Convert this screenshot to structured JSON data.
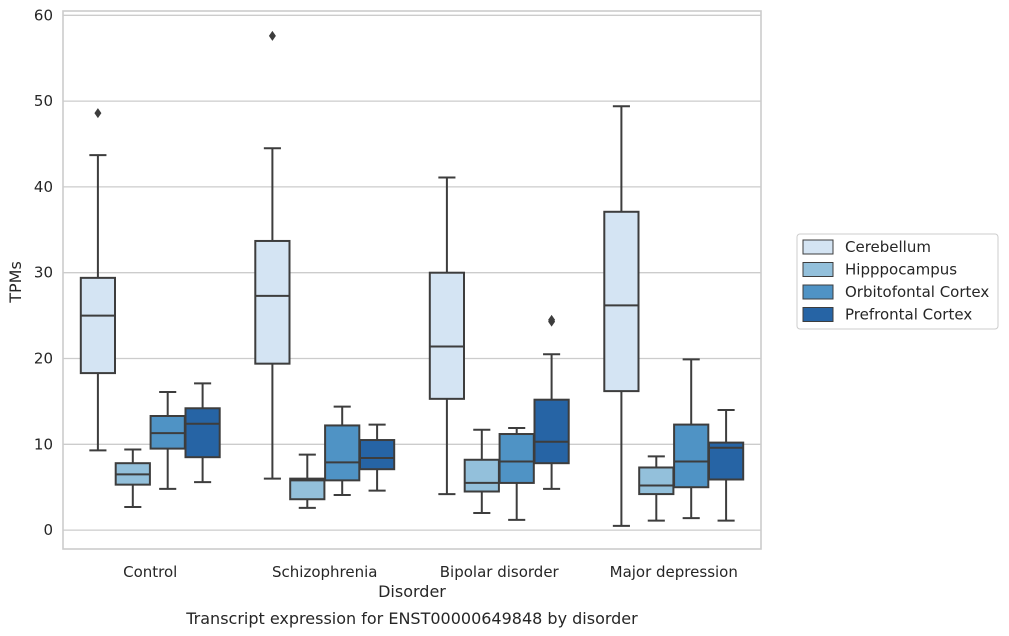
{
  "chart_data": {
    "type": "box",
    "title": "",
    "caption": "Transcript expression for ENST00000649848 by disorder",
    "xlabel": "Disorder",
    "ylabel": "TPMs",
    "ylim": [
      -2.2,
      60.5
    ],
    "yticks": [
      0,
      10,
      20,
      30,
      40,
      50,
      60
    ],
    "grid": true,
    "legend_position": "right",
    "categories": [
      "Control",
      "Schizophrenia",
      "Bipolar disorder",
      "Major depression"
    ],
    "series": [
      {
        "name": "Cerebellum",
        "color": "#d4e4f3",
        "boxes": [
          {
            "whisker_low": 9.3,
            "q1": 18.3,
            "median": 25.0,
            "q3": 29.4,
            "whisker_high": 43.7,
            "outliers": [
              48.6
            ]
          },
          {
            "whisker_low": 6.0,
            "q1": 19.4,
            "median": 27.3,
            "q3": 33.7,
            "whisker_high": 44.5,
            "outliers": [
              57.6
            ]
          },
          {
            "whisker_low": 4.2,
            "q1": 15.3,
            "median": 21.4,
            "q3": 30.0,
            "whisker_high": 41.1,
            "outliers": []
          },
          {
            "whisker_low": 0.5,
            "q1": 16.2,
            "median": 26.2,
            "q3": 37.1,
            "whisker_high": 49.4,
            "outliers": []
          }
        ]
      },
      {
        "name": "Hipppocampus",
        "color": "#93c0db",
        "boxes": [
          {
            "whisker_low": 2.7,
            "q1": 5.3,
            "median": 6.5,
            "q3": 7.8,
            "whisker_high": 9.4,
            "outliers": []
          },
          {
            "whisker_low": 2.6,
            "q1": 3.6,
            "median": 5.8,
            "q3": 6.0,
            "whisker_high": 8.8,
            "outliers": []
          },
          {
            "whisker_low": 2.0,
            "q1": 4.5,
            "median": 5.5,
            "q3": 8.2,
            "whisker_high": 11.7,
            "outliers": []
          },
          {
            "whisker_low": 1.1,
            "q1": 4.2,
            "median": 5.2,
            "q3": 7.3,
            "whisker_high": 8.6,
            "outliers": []
          }
        ]
      },
      {
        "name": "Orbitofontal Cortex",
        "color": "#4f93c5",
        "boxes": [
          {
            "whisker_low": 4.8,
            "q1": 9.5,
            "median": 11.3,
            "q3": 13.3,
            "whisker_high": 16.1,
            "outliers": []
          },
          {
            "whisker_low": 4.1,
            "q1": 5.8,
            "median": 7.9,
            "q3": 12.2,
            "whisker_high": 14.4,
            "outliers": []
          },
          {
            "whisker_low": 1.2,
            "q1": 5.5,
            "median": 8.0,
            "q3": 11.2,
            "whisker_high": 11.9,
            "outliers": []
          },
          {
            "whisker_low": 1.4,
            "q1": 5.0,
            "median": 8.0,
            "q3": 12.3,
            "whisker_high": 19.9,
            "outliers": []
          }
        ]
      },
      {
        "name": "Prefrontal Cortex",
        "color": "#2664a5",
        "boxes": [
          {
            "whisker_low": 5.6,
            "q1": 8.5,
            "median": 12.4,
            "q3": 14.2,
            "whisker_high": 17.1,
            "outliers": []
          },
          {
            "whisker_low": 4.6,
            "q1": 7.1,
            "median": 8.4,
            "q3": 10.5,
            "whisker_high": 12.3,
            "outliers": []
          },
          {
            "whisker_low": 4.8,
            "q1": 7.8,
            "median": 10.3,
            "q3": 15.2,
            "whisker_high": 20.5,
            "outliers": [
              24.3,
              24.5
            ]
          },
          {
            "whisker_low": 1.1,
            "q1": 5.9,
            "median": 9.6,
            "q3": 10.2,
            "whisker_high": 14.0,
            "outliers": []
          }
        ]
      }
    ]
  }
}
